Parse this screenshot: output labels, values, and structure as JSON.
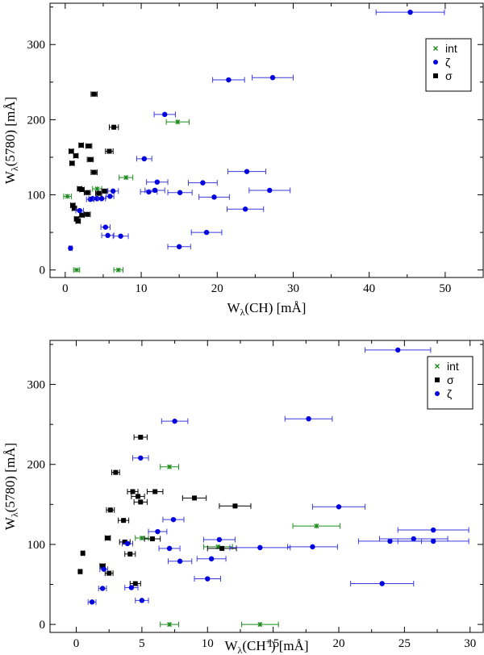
{
  "colors": {
    "int": "#1a8a1a",
    "zeta": "#0000e0",
    "sigma": "#000000",
    "zetaErr": "#3a3adf"
  },
  "chart_data": [
    {
      "type": "scatter",
      "id": "top",
      "xlabel_main": "W",
      "xlabel_sub": "λ",
      "xlabel_rest": "(CH) [mÅ]",
      "ylabel_main": "W",
      "ylabel_sub": "λ",
      "ylabel_rest": "(5780) [mÅ]",
      "xlim": [
        -2,
        55
      ],
      "ylim": [
        -10,
        355
      ],
      "xticks": [
        0,
        10,
        20,
        30,
        40,
        50
      ],
      "yticks": [
        0,
        100,
        200,
        300
      ],
      "legend": [
        {
          "key": "int",
          "label": "int"
        },
        {
          "key": "zeta",
          "label": "ζ"
        },
        {
          "key": "sigma",
          "label": "σ"
        }
      ],
      "series": [
        {
          "key": "int",
          "name": "int",
          "marker": "x",
          "points": [
            [
              0.3,
              98,
              0.5
            ],
            [
              1.5,
              0,
              0.4
            ],
            [
              4.2,
              108,
              0.6
            ],
            [
              7.0,
              0,
              0.6
            ],
            [
              8.0,
              123,
              0.9
            ],
            [
              14.8,
              197,
              1.5
            ]
          ]
        },
        {
          "key": "sigma",
          "name": "σ",
          "marker": "square",
          "points": [
            [
              0.8,
              158,
              0.3
            ],
            [
              0.9,
              142,
              0.3
            ],
            [
              1.0,
              86,
              0.3
            ],
            [
              1.2,
              82,
              0.3
            ],
            [
              1.4,
              152,
              0.3
            ],
            [
              1.5,
              68,
              0.3
            ],
            [
              1.7,
              65,
              0.3
            ],
            [
              1.9,
              108,
              0.3
            ],
            [
              2.1,
              166,
              0.3
            ],
            [
              2.2,
              73,
              0.3
            ],
            [
              2.9,
              74,
              0.4
            ],
            [
              2.9,
              103,
              0.4
            ],
            [
              3.1,
              165,
              0.4
            ],
            [
              3.3,
              147,
              0.4
            ],
            [
              3.8,
              234,
              0.4
            ],
            [
              3.8,
              130,
              0.4
            ],
            [
              4.4,
              102,
              0.4
            ],
            [
              5.2,
              105,
              0.4
            ],
            [
              5.8,
              158,
              0.5
            ],
            [
              6.4,
              190,
              0.6
            ],
            [
              2.2,
              107,
              0.3
            ]
          ]
        },
        {
          "key": "zeta",
          "name": "ζ",
          "marker": "circle",
          "points": [
            [
              0.7,
              29,
              0.2
            ],
            [
              1.9,
              79,
              0.5
            ],
            [
              3.3,
              94,
              0.5
            ],
            [
              3.6,
              95,
              0.5
            ],
            [
              4.2,
              95,
              0.5
            ],
            [
              4.8,
              95,
              0.5
            ],
            [
              5.3,
              57,
              0.6
            ],
            [
              5.6,
              46,
              0.8
            ],
            [
              5.9,
              98,
              0.5
            ],
            [
              6.3,
              105,
              0.7
            ],
            [
              7.3,
              45,
              1.0
            ],
            [
              10.4,
              148,
              1.0
            ],
            [
              11.0,
              104,
              1.1
            ],
            [
              11.8,
              106,
              1.3
            ],
            [
              12.1,
              117,
              1.4
            ],
            [
              13.1,
              207,
              1.4
            ],
            [
              15.0,
              31,
              1.5
            ],
            [
              15.1,
              103,
              1.6
            ],
            [
              18.1,
              116,
              1.9
            ],
            [
              18.6,
              50,
              2.0
            ],
            [
              19.6,
              97,
              2.0
            ],
            [
              21.5,
              253,
              2.1
            ],
            [
              23.7,
              81,
              2.4
            ],
            [
              23.9,
              131,
              2.5
            ],
            [
              26.9,
              106,
              2.7
            ],
            [
              27.3,
              256,
              2.7
            ],
            [
              45.4,
              343,
              4.5
            ]
          ]
        }
      ]
    },
    {
      "type": "scatter",
      "id": "bottom",
      "xlabel_main": "W",
      "xlabel_sub": "λ",
      "xlabel_rest_a": "(CH",
      "xlabel_sup": "+",
      "xlabel_rest_b": ") [mÅ]",
      "ylabel_main": "W",
      "ylabel_sub": "λ",
      "ylabel_rest": "(5780) [mÅ]",
      "xlim": [
        -2,
        31
      ],
      "ylim": [
        -10,
        355
      ],
      "xticks": [
        0,
        5,
        10,
        15,
        20,
        25,
        30
      ],
      "yticks": [
        0,
        100,
        200,
        300
      ],
      "legend": [
        {
          "key": "int",
          "label": "int"
        },
        {
          "key": "sigma",
          "label": "σ"
        },
        {
          "key": "zeta",
          "label": "ζ"
        }
      ],
      "series": [
        {
          "key": "int",
          "name": "int",
          "marker": "x",
          "points": [
            [
              5.0,
              108,
              0.5
            ],
            [
              7.1,
              0,
              0.7
            ],
            [
              7.1,
              197,
              0.7
            ],
            [
              10.8,
              97,
              1.1
            ],
            [
              14.0,
              0,
              1.4
            ],
            [
              18.3,
              123,
              1.8
            ]
          ]
        },
        {
          "key": "sigma",
          "name": "σ",
          "marker": "square",
          "points": [
            [
              0.3,
              66,
              0.1
            ],
            [
              0.5,
              89,
              0.1
            ],
            [
              2.0,
              73,
              0.2
            ],
            [
              2.4,
              108,
              0.2
            ],
            [
              2.6,
              143,
              0.3
            ],
            [
              2.5,
              64,
              0.3
            ],
            [
              3.0,
              190,
              0.3
            ],
            [
              3.6,
              130,
              0.4
            ],
            [
              3.7,
              103,
              0.4
            ],
            [
              4.1,
              88,
              0.4
            ],
            [
              4.3,
              166,
              0.4
            ],
            [
              4.5,
              51,
              0.4
            ],
            [
              4.7,
              160,
              0.5
            ],
            [
              4.9,
              234,
              0.5
            ],
            [
              4.9,
              153,
              0.5
            ],
            [
              5.8,
              107,
              0.6
            ],
            [
              6.0,
              166,
              0.6
            ],
            [
              9.0,
              158,
              0.9
            ],
            [
              11.1,
              95,
              1.1
            ],
            [
              12.1,
              148,
              1.2
            ]
          ]
        },
        {
          "key": "zeta",
          "name": "ζ",
          "marker": "circle",
          "points": [
            [
              1.2,
              28,
              0.3
            ],
            [
              2.0,
              45,
              0.3
            ],
            [
              2.1,
              69,
              0.3
            ],
            [
              3.9,
              101,
              0.4
            ],
            [
              4.2,
              46,
              0.5
            ],
            [
              4.9,
              208,
              0.6
            ],
            [
              5.0,
              30,
              0.5
            ],
            [
              6.2,
              116,
              0.7
            ],
            [
              7.1,
              95,
              0.8
            ],
            [
              7.4,
              131,
              0.8
            ],
            [
              7.5,
              254,
              1.0
            ],
            [
              7.9,
              79,
              0.9
            ],
            [
              10.0,
              57,
              1.0
            ],
            [
              10.3,
              82,
              1.1
            ],
            [
              10.9,
              106,
              1.2
            ],
            [
              14.0,
              96,
              2.3
            ],
            [
              17.7,
              257,
              1.8
            ],
            [
              18.0,
              97,
              1.9
            ],
            [
              20.0,
              147,
              2.0
            ],
            [
              23.3,
              51,
              2.4
            ],
            [
              23.9,
              104,
              2.4
            ],
            [
              24.5,
              343,
              2.5
            ],
            [
              25.7,
              107,
              2.6
            ],
            [
              27.2,
              118,
              2.7
            ],
            [
              27.2,
              104,
              2.7
            ]
          ]
        }
      ]
    }
  ]
}
